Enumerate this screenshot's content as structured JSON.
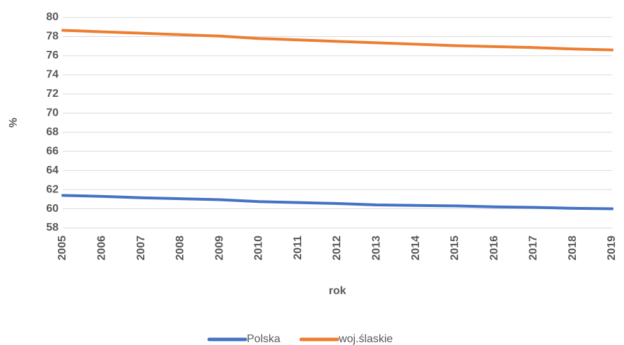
{
  "chart_data": {
    "type": "line",
    "y_label": "%",
    "x_label": "rok",
    "categories": [
      "2005",
      "2006",
      "2007",
      "2008",
      "2009",
      "2010",
      "2011",
      "2012",
      "2013",
      "2014",
      "2015",
      "2016",
      "2017",
      "2018",
      "2019"
    ],
    "series": [
      {
        "name": "Polska",
        "color": "#4472c4",
        "values": [
          61.4,
          61.3,
          61.15,
          61.05,
          60.95,
          60.75,
          60.65,
          60.55,
          60.4,
          60.35,
          60.3,
          60.2,
          60.15,
          60.05,
          60.0
        ]
      },
      {
        "name": "woj.ślaskie",
        "color": "#ed7d31",
        "values": [
          78.65,
          78.5,
          78.35,
          78.2,
          78.05,
          77.8,
          77.65,
          77.5,
          77.35,
          77.2,
          77.05,
          76.95,
          76.85,
          76.7,
          76.6
        ]
      }
    ],
    "ylim": [
      58,
      80
    ],
    "yticks": [
      58,
      60,
      62,
      64,
      66,
      68,
      70,
      72,
      74,
      76,
      78,
      80
    ],
    "grid": true,
    "legend": "bottom"
  }
}
